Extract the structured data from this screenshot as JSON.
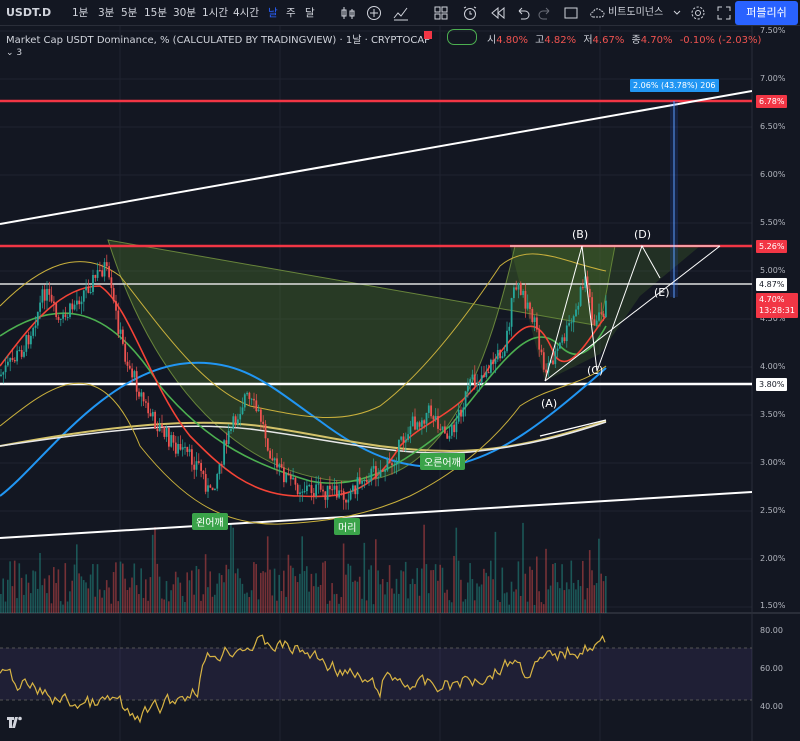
{
  "toolbar": {
    "symbol": "USDT.D",
    "timeframes": [
      "1분",
      "3분",
      "5분",
      "15분",
      "30분",
      "1시간",
      "4시간",
      "날",
      "주",
      "달"
    ],
    "active_timeframe": "날",
    "compare_label": "비트도미넌스",
    "publish_label": "퍼블리쉬"
  },
  "legend": {
    "title": "Market Cap USDT Dominance, % (CALCULATED BY TRADINGVIEW) · 1날 · CRYPTOCAP",
    "ohlc_labels": [
      "시",
      "고",
      "저",
      "종"
    ],
    "ohlc_values": [
      "4.80%",
      "4.82%",
      "4.67%",
      "4.70%"
    ],
    "change": "-0.10% (-2.03%)",
    "indicators_count": "3",
    "colors": {
      "up": "#26a69a",
      "down": "#ef5350",
      "legend_value": "#ef5350"
    }
  },
  "price_axis": {
    "ticks": [
      "7.50%",
      "7.00%",
      "6.50%",
      "6.00%",
      "5.50%",
      "5.00%",
      "4.50%",
      "4.00%",
      "3.50%",
      "3.00%",
      "2.50%",
      "2.00%",
      "1.50%"
    ],
    "labels": {
      "upper_red": "6.78%",
      "mid_red": "5.26%",
      "white_upper": "4.87%",
      "current_price": "4.70%",
      "countdown": "13:28:31",
      "white_lower": "3.80%"
    }
  },
  "measure_label": "2.06% (43.78%) 206",
  "wave_labels": [
    "(B)",
    "(D)",
    "(E)",
    "(C)",
    "(A)"
  ],
  "pattern_labels": [
    "왼어깨",
    "머리",
    "오른어깨"
  ],
  "rsi_axis": [
    "80.00",
    "60.00",
    "40.00"
  ],
  "colors": {
    "background": "#131722",
    "red_line": "#f23645",
    "white_line": "#ffffff",
    "ma_blue": "#2196f3",
    "ma_yellow": "#d4c36a",
    "ma_green": "#4caf50",
    "ma_red": "#f44336",
    "cup_fill": "#4f7a2a",
    "rsi_line": "#d8b444",
    "rsi_band": "#7e57c2",
    "accent": "#2962ff"
  }
}
